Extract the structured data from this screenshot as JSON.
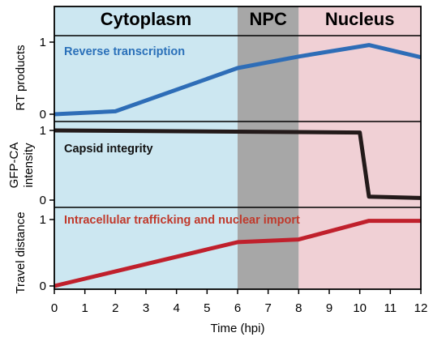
{
  "chart_data": {
    "type": "line",
    "x_unit_label": "Time (hpi)",
    "xlim": [
      0,
      12
    ],
    "x_ticks": [
      "0",
      "1",
      "2",
      "3",
      "4",
      "5",
      "6",
      "7",
      "8",
      "9",
      "10",
      "11",
      "12"
    ],
    "regions": [
      {
        "label": "Cytoplasm",
        "x": [
          0,
          6
        ],
        "color": "#cce7f1"
      },
      {
        "label": "NPC",
        "x": [
          6,
          8
        ],
        "color": "#a7a7a7"
      },
      {
        "label": "Nucleus",
        "x": [
          8,
          12
        ],
        "color": "#f0d0d5"
      }
    ],
    "panels": [
      {
        "ylabel": "RT products",
        "ylim": [
          0,
          1
        ],
        "y_ticks": [
          "0",
          "1"
        ],
        "series": [
          {
            "name": "Reverse transcription",
            "color": "#2e6db7",
            "label_color": "#2a70b9",
            "x": [
              0,
              2,
              6,
              8,
              10.3,
              12
            ],
            "y": [
              0.0,
              0.04,
              0.64,
              0.8,
              0.96,
              0.79
            ]
          }
        ]
      },
      {
        "ylabel": "GFP-CA intensity",
        "ylim": [
          0,
          1
        ],
        "y_ticks": [
          "0",
          "1"
        ],
        "series": [
          {
            "name": "Capsid integrity",
            "color": "#231a1a",
            "label_color": "#111111",
            "x": [
              0,
              10,
              10.3,
              12
            ],
            "y": [
              1.0,
              0.97,
              0.05,
              0.03
            ]
          }
        ]
      },
      {
        "ylabel": "Travel distance",
        "ylim": [
          0,
          1
        ],
        "y_ticks": [
          "0",
          "1"
        ],
        "series": [
          {
            "name": "Intracellular trafficking and nuclear import",
            "color": "#c0202c",
            "label_color": "#c0392b",
            "x": [
              0,
              6,
              8,
              10.3,
              12
            ],
            "y": [
              0.0,
              0.66,
              0.7,
              0.98,
              0.98
            ]
          }
        ]
      }
    ]
  }
}
